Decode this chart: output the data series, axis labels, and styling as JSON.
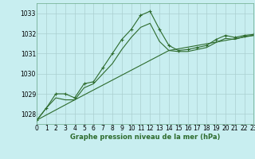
{
  "title": "Graphe pression niveau de la mer (hPa)",
  "bg_color": "#c8eef0",
  "grid_color": "#aacfcf",
  "line_color": "#2d6b2d",
  "x_min": 0,
  "x_max": 23,
  "y_min": 1027.5,
  "y_max": 1033.5,
  "yticks": [
    1028,
    1029,
    1030,
    1031,
    1032,
    1033
  ],
  "xticks": [
    0,
    1,
    2,
    3,
    4,
    5,
    6,
    7,
    8,
    9,
    10,
    11,
    12,
    13,
    14,
    15,
    16,
    17,
    18,
    19,
    20,
    21,
    22,
    23
  ],
  "series": [
    {
      "x": [
        0,
        1,
        2,
        3,
        4,
        5,
        6,
        7,
        8,
        9,
        10,
        11,
        12,
        13,
        14,
        15,
        16,
        17,
        18,
        19,
        20,
        21,
        22,
        23
      ],
      "y": [
        1027.7,
        1028.3,
        1029.0,
        1029.0,
        1028.8,
        1029.5,
        1029.6,
        1030.3,
        1031.0,
        1031.7,
        1032.2,
        1032.9,
        1033.1,
        1032.2,
        1031.4,
        1031.15,
        1031.2,
        1031.3,
        1031.4,
        1031.7,
        1031.9,
        1031.8,
        1031.9,
        1031.95
      ],
      "marker": "+"
    },
    {
      "x": [
        0,
        1,
        2,
        3,
        4,
        5,
        6,
        7,
        8,
        9,
        10,
        11,
        12,
        13,
        14,
        15,
        16,
        17,
        18,
        19,
        20,
        21,
        22,
        23
      ],
      "y": [
        1027.7,
        1028.3,
        1028.8,
        1028.7,
        1028.7,
        1029.3,
        1029.5,
        1030.0,
        1030.5,
        1031.2,
        1031.8,
        1032.3,
        1032.5,
        1031.6,
        1031.15,
        1031.1,
        1031.1,
        1031.2,
        1031.3,
        1031.55,
        1031.75,
        1031.7,
        1031.85,
        1031.9
      ],
      "marker": null
    },
    {
      "x": [
        0,
        4,
        14,
        23
      ],
      "y": [
        1027.7,
        1028.7,
        1031.15,
        1031.9
      ],
      "marker": null
    }
  ]
}
